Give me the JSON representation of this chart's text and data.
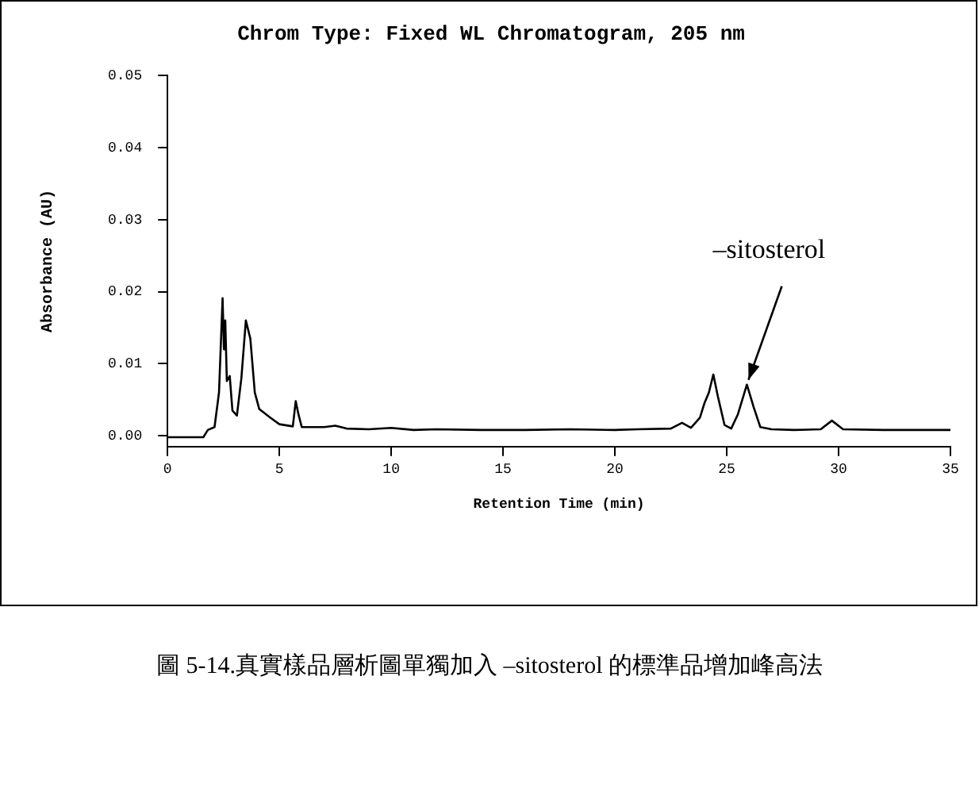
{
  "chart_data": {
    "type": "line",
    "title": "Chrom Type: Fixed WL Chromatogram, 205 nm",
    "xlabel": "Retention Time (min)",
    "ylabel": "Absorbance (AU)",
    "x": [
      0,
      1.0,
      1.6,
      1.8,
      2.1,
      2.3,
      2.46,
      2.52,
      2.58,
      2.65,
      2.78,
      2.9,
      3.1,
      3.3,
      3.5,
      3.7,
      3.9,
      4.1,
      4.6,
      5.0,
      5.6,
      5.73,
      5.85,
      6.0,
      7.0,
      7.5,
      8.0,
      9.0,
      10,
      11,
      12,
      14,
      16,
      18,
      20,
      21,
      22.5,
      23,
      23.4,
      23.8,
      24.0,
      24.2,
      24.4,
      24.6,
      24.9,
      25.2,
      25.5,
      25.9,
      26.2,
      26.5,
      27,
      28,
      29.2,
      29.7,
      30.2,
      32,
      34,
      35
    ],
    "series": [
      {
        "color": "#000000",
        "values": [
          -0.0002,
          -0.0002,
          -0.0002,
          0.0008,
          0.0012,
          0.006,
          0.0191,
          0.012,
          0.016,
          0.0076,
          0.0083,
          0.0035,
          0.0028,
          0.008,
          0.016,
          0.0135,
          0.006,
          0.0037,
          0.0025,
          0.0016,
          0.0013,
          0.0048,
          0.003,
          0.0012,
          0.0012,
          0.0014,
          0.001,
          0.0009,
          0.0011,
          0.0008,
          0.0009,
          0.0008,
          0.0008,
          0.0009,
          0.0008,
          0.0009,
          0.001,
          0.0018,
          0.0011,
          0.0025,
          0.0045,
          0.006,
          0.0085,
          0.0055,
          0.0015,
          0.001,
          0.003,
          0.0071,
          0.004,
          0.0012,
          0.0009,
          0.0008,
          0.0009,
          0.0021,
          0.0009,
          0.0008,
          0.0008,
          0.0008
        ]
      }
    ],
    "xlim": [
      0,
      35
    ],
    "xticks": [
      0,
      5,
      10,
      15,
      20,
      25,
      30,
      35
    ],
    "ylim": [
      -0.0015,
      0.05
    ],
    "yticks": [
      {
        "value": 0,
        "label": "0.00"
      },
      {
        "value": 0.01,
        "label": "0.01"
      },
      {
        "value": 0.02,
        "label": "0.02"
      },
      {
        "value": 0.03,
        "label": "0.03"
      },
      {
        "value": 0.04,
        "label": "0.04"
      },
      {
        "value": 0.05,
        "label": "0.05"
      }
    ],
    "annotations": [
      {
        "text": "–sitosterol",
        "x": 25.9,
        "y": 0.0071
      },
      "圖 5-14.真實樣品層析圖單獨加入 –sitosterol 的標準品增加峰高法"
    ],
    "grid": false,
    "legend": false,
    "marker": "none",
    "line_style": "solid"
  }
}
